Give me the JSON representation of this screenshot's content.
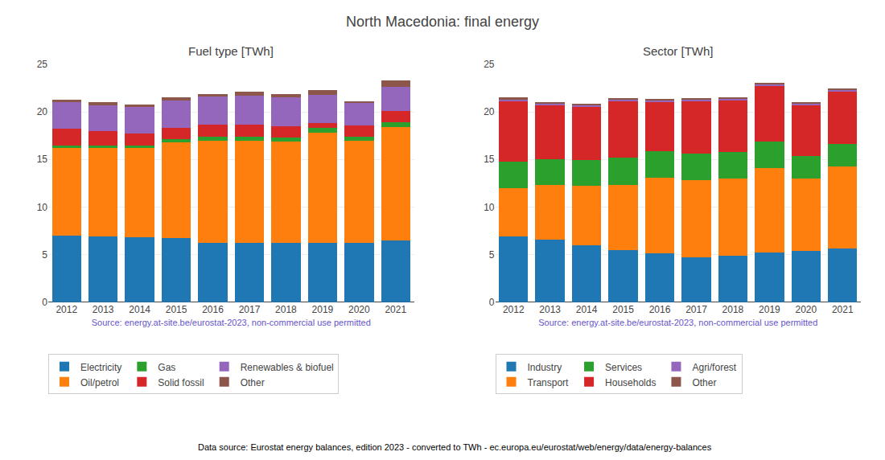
{
  "title": "North Macedonia: final energy",
  "annotations": [
    "Data source: Eurostat energy balances, edition 2023 - converted to TWh - ec.europa.eu/eurostat/web/energy/data/energy-balances"
  ],
  "chart_data": [
    {
      "type": "bar",
      "title": "Fuel type [TWh]",
      "xlabel": "Source: energy.at-site.be/eurostat-2023, non-commercial use permitted",
      "categories": [
        "2012",
        "2013",
        "2014",
        "2015",
        "2016",
        "2017",
        "2018",
        "2019",
        "2020",
        "2021"
      ],
      "series": [
        {
          "name": "Electricity",
          "color": "#1f77b4",
          "values": [
            7.0,
            6.9,
            6.8,
            6.7,
            6.2,
            6.2,
            6.2,
            6.2,
            6.2,
            6.5
          ]
        },
        {
          "name": "Oil/petrol",
          "color": "#ff7f0e",
          "values": [
            9.2,
            9.3,
            9.4,
            10.1,
            10.8,
            10.8,
            10.7,
            11.6,
            10.8,
            11.9
          ]
        },
        {
          "name": "Gas",
          "color": "#2ca02c",
          "values": [
            0.3,
            0.3,
            0.3,
            0.3,
            0.4,
            0.4,
            0.4,
            0.5,
            0.4,
            0.5
          ]
        },
        {
          "name": "Solid fossil",
          "color": "#d62728",
          "values": [
            1.7,
            1.5,
            1.2,
            1.2,
            1.3,
            1.3,
            1.2,
            0.5,
            1.2,
            1.2
          ]
        },
        {
          "name": "Renewables & biofuel",
          "color": "#9467bd",
          "values": [
            2.8,
            2.7,
            2.8,
            2.9,
            2.9,
            3.0,
            3.0,
            3.0,
            2.4,
            2.5
          ]
        },
        {
          "name": "Other",
          "color": "#8c564b",
          "values": [
            0.3,
            0.3,
            0.3,
            0.3,
            0.3,
            0.4,
            0.4,
            0.5,
            0.1,
            0.7
          ]
        }
      ],
      "ylim": [
        0,
        25
      ],
      "yticks": [
        0,
        5,
        10,
        15,
        20,
        25
      ],
      "stacked": true,
      "grid": true,
      "legend": "bottom"
    },
    {
      "type": "bar",
      "title": "Sector [TWh]",
      "xlabel": "Source: energy.at-site.be/eurostat-2023, non-commercial use permitted",
      "categories": [
        "2012",
        "2013",
        "2014",
        "2015",
        "2016",
        "2017",
        "2018",
        "2019",
        "2020",
        "2021"
      ],
      "series": [
        {
          "name": "Industry",
          "color": "#1f77b4",
          "values": [
            6.9,
            6.6,
            6.0,
            5.5,
            5.1,
            4.7,
            4.9,
            5.2,
            5.4,
            5.6
          ]
        },
        {
          "name": "Transport",
          "color": "#ff7f0e",
          "values": [
            5.1,
            5.7,
            6.2,
            6.8,
            8.0,
            8.1,
            8.1,
            8.9,
            7.6,
            8.7
          ]
        },
        {
          "name": "Services",
          "color": "#2ca02c",
          "values": [
            2.8,
            2.7,
            2.7,
            2.9,
            2.8,
            2.8,
            2.8,
            2.8,
            2.4,
            2.3
          ]
        },
        {
          "name": "Households",
          "color": "#d62728",
          "values": [
            6.3,
            5.7,
            5.6,
            5.9,
            5.1,
            5.5,
            5.4,
            5.8,
            5.3,
            5.5
          ]
        },
        {
          "name": "Agri/forest",
          "color": "#9467bd",
          "values": [
            0.2,
            0.2,
            0.2,
            0.2,
            0.2,
            0.2,
            0.2,
            0.2,
            0.2,
            0.2
          ]
        },
        {
          "name": "Other",
          "color": "#8c564b",
          "values": [
            0.2,
            0.1,
            0.1,
            0.1,
            0.1,
            0.1,
            0.1,
            0.1,
            0.1,
            0.1
          ]
        }
      ],
      "ylim": [
        0,
        25
      ],
      "yticks": [
        0,
        5,
        10,
        15,
        20,
        25
      ],
      "stacked": true,
      "grid": true,
      "legend": "bottom"
    }
  ]
}
